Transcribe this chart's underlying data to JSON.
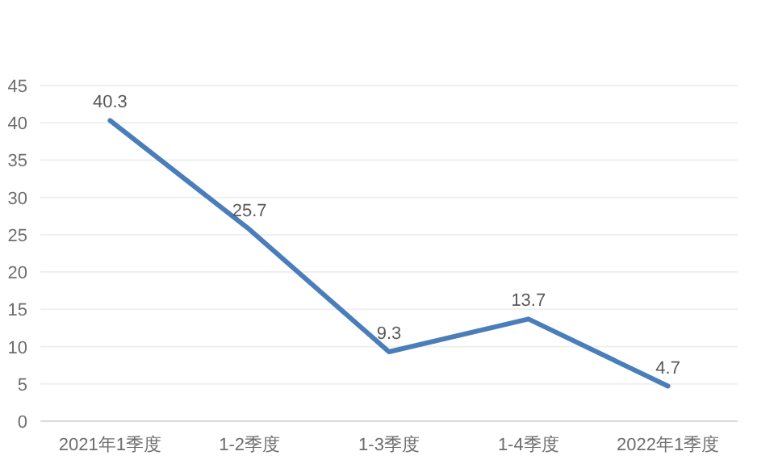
{
  "chart_data": {
    "type": "line",
    "categories": [
      "2021年1季度",
      "1-2季度",
      "1-3季度",
      "1-4季度",
      "2022年1季度"
    ],
    "series": [
      {
        "color": "#4a7ebb",
        "values": [
          40.3,
          25.7,
          9.3,
          13.7,
          4.7
        ]
      }
    ],
    "ylim": [
      0,
      45
    ],
    "yticks": [
      0,
      5,
      10,
      15,
      20,
      25,
      30,
      35,
      40,
      45
    ],
    "grid": "y",
    "data_labels": true,
    "marker": "none",
    "line_style": "solid"
  }
}
